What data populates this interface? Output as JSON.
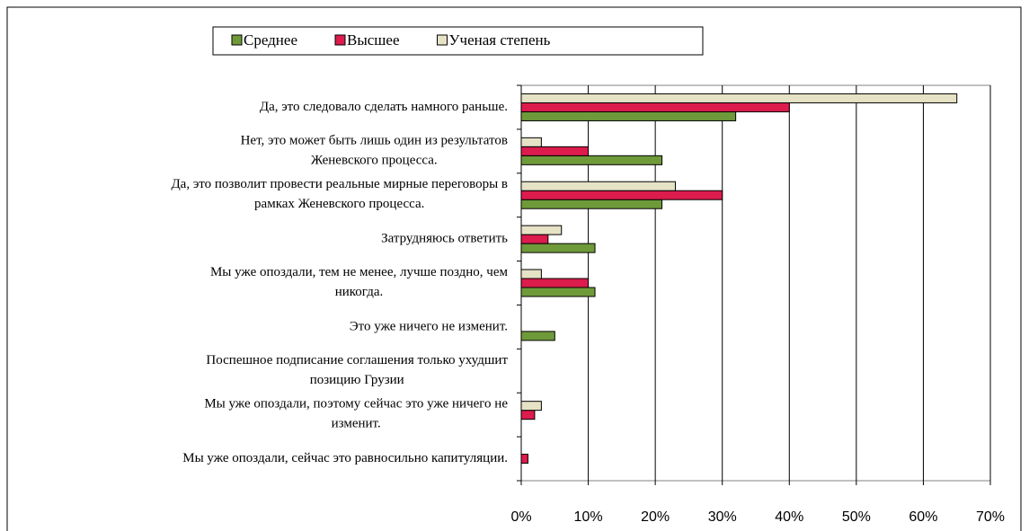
{
  "chart_data": {
    "type": "barh",
    "categories": [
      "Да, это следовало сделать намного раньше.",
      "Нет, это может быть лишь один из результатов\nЖеневского процесса.",
      "Да, это позволит провести реальные мирные переговоры в\nрамках Женевского процесса.",
      "Затрудняюсь ответить",
      "Мы уже опоздали, тем не менее, лучше поздно, чем\nникогда.",
      "Это уже ничего не изменит.",
      "Поспешное подписание соглашения только ухудшит\nпозицию Грузии",
      "Мы уже опоздали, поэтому сейчас это уже ничего не\nизменит.",
      "Мы уже опоздали, сейчас это равносильно капитуляции."
    ],
    "series": [
      {
        "name": "Среднее",
        "color": "#6f9a3a",
        "values": [
          32,
          21,
          21,
          11,
          11,
          5,
          0,
          0,
          0
        ]
      },
      {
        "name": "Высшее",
        "color": "#dc1c4c",
        "values": [
          40,
          10,
          30,
          4,
          10,
          0,
          0,
          2,
          1
        ]
      },
      {
        "name": "Ученая степень",
        "color": "#e6e2c6",
        "values": [
          65,
          3,
          23,
          6,
          3,
          0,
          0,
          3,
          0
        ]
      }
    ],
    "xlim": [
      0,
      70
    ],
    "xticks": [
      {
        "value": 0,
        "label": "0%"
      },
      {
        "value": 10,
        "label": "10%"
      },
      {
        "value": 20,
        "label": "20%"
      },
      {
        "value": 30,
        "label": "30%"
      },
      {
        "value": 40,
        "label": "40%"
      },
      {
        "value": 50,
        "label": "50%"
      },
      {
        "value": 60,
        "label": "60%"
      },
      {
        "value": 70,
        "label": "70%"
      }
    ],
    "grid": true
  }
}
